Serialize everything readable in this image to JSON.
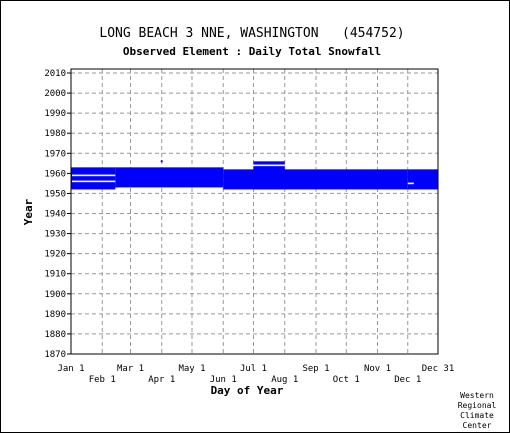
{
  "chart_data": {
    "type": "heatmap",
    "title": "LONG BEACH 3 NNE, WASHINGTON   (454752)",
    "subtitle": "Observed Element : Daily Total Snowfall",
    "xlabel": "Day of Year",
    "ylabel": "Year",
    "xlim": [
      1,
      365
    ],
    "ylim": [
      1870,
      2012
    ],
    "yticks": [
      1870,
      1880,
      1890,
      1900,
      1910,
      1920,
      1930,
      1940,
      1950,
      1960,
      1970,
      1980,
      1990,
      2000,
      2010
    ],
    "xticks_top": [
      {
        "label": "Jan 1",
        "day": 1
      },
      {
        "label": "Mar 1",
        "day": 60
      },
      {
        "label": "May 1",
        "day": 121
      },
      {
        "label": "Jul 1",
        "day": 182
      },
      {
        "label": "Sep 1",
        "day": 244
      },
      {
        "label": "Nov 1",
        "day": 305
      },
      {
        "label": "Dec 31",
        "day": 365
      }
    ],
    "xticks_bottom": [
      {
        "label": "Feb 1",
        "day": 32
      },
      {
        "label": "Apr 1",
        "day": 91
      },
      {
        "label": "Jun 1",
        "day": 152
      },
      {
        "label": "Aug 1",
        "day": 213
      },
      {
        "label": "Oct 1",
        "day": 274
      },
      {
        "label": "Dec 1",
        "day": 335
      }
    ],
    "grid": true,
    "data_color": "#0000ff",
    "coverage": [
      {
        "day_start": 1,
        "day_end": 45,
        "year_start": 1952,
        "year_end": 1963
      },
      {
        "day_start": 45,
        "day_end": 152,
        "year_start": 1953,
        "year_end": 1963
      },
      {
        "day_start": 152,
        "day_end": 335,
        "year_start": 1952,
        "year_end": 1962
      },
      {
        "day_start": 182,
        "day_end": 213,
        "year_start": 1952,
        "year_end": 1966
      },
      {
        "day_start": 335,
        "day_end": 365,
        "year_start": 1952,
        "year_end": 1962
      }
    ],
    "gaps": [
      {
        "day_start": 2,
        "day_end": 45,
        "year": 1959
      },
      {
        "day_start": 2,
        "day_end": 45,
        "year": 1956
      },
      {
        "day_start": 335,
        "day_end": 341,
        "year": 1955
      },
      {
        "day_start": 182,
        "day_end": 213,
        "year": 1964
      }
    ],
    "isolated_points": [
      {
        "day": 91,
        "year": 1966
      }
    ]
  },
  "credit": [
    "Western",
    "Regional",
    "Climate",
    "Center"
  ]
}
